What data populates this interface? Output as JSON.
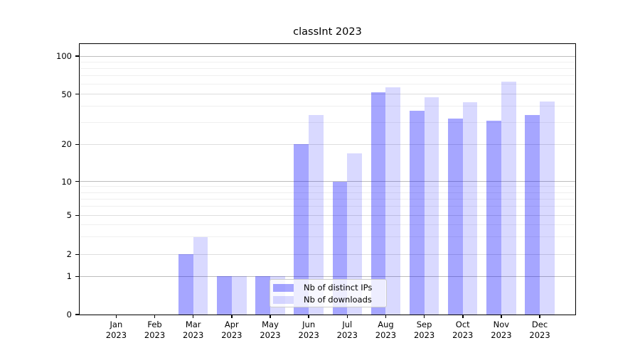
{
  "chart_data": {
    "type": "bar",
    "title": "classInt 2023",
    "categories": [
      "Jan 2023",
      "Feb 2023",
      "Mar 2023",
      "Apr 2023",
      "May 2023",
      "Jun 2023",
      "Jul 2023",
      "Aug 2023",
      "Sep 2023",
      "Oct 2023",
      "Nov 2023",
      "Dec 2023"
    ],
    "series": [
      {
        "name": "Nb of distinct IPs",
        "color": "rgba(0,0,255,0.35)",
        "values": [
          0,
          0,
          2,
          1,
          1,
          20,
          10,
          52,
          37,
          32,
          31,
          34
        ]
      },
      {
        "name": "Nb of downloads",
        "color": "rgba(0,0,255,0.15)",
        "values": [
          0,
          0,
          3,
          1,
          1,
          34,
          17,
          57,
          47,
          43,
          63,
          44
        ]
      }
    ],
    "xlabel": "",
    "ylabel": "",
    "y_axis": {
      "scale": "symlog",
      "ticks": [
        0,
        1,
        2,
        5,
        10,
        20,
        50,
        100
      ],
      "major_gridlines": [
        1,
        10,
        100
      ],
      "labeled_minor_gridlines": [
        2,
        5,
        20,
        50
      ],
      "minor_gridlines": [
        3,
        4,
        6,
        7,
        8,
        9,
        30,
        40,
        60,
        70,
        80,
        90
      ],
      "range": [
        0,
        125
      ]
    },
    "grid": true,
    "legend_position": "lower-center"
  }
}
